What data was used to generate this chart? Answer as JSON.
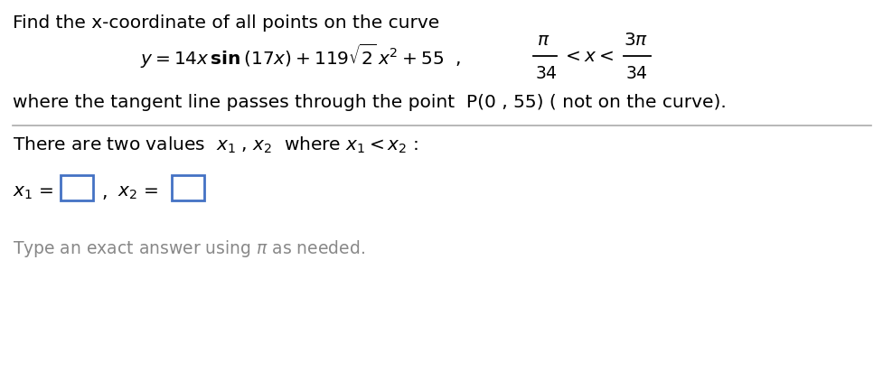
{
  "bg_color": "#ffffff",
  "text_color": "#000000",
  "gray_color": "#888888",
  "blue_box_color": "#4472C4",
  "figwidth": 9.78,
  "figheight": 4.22,
  "dpi": 100
}
